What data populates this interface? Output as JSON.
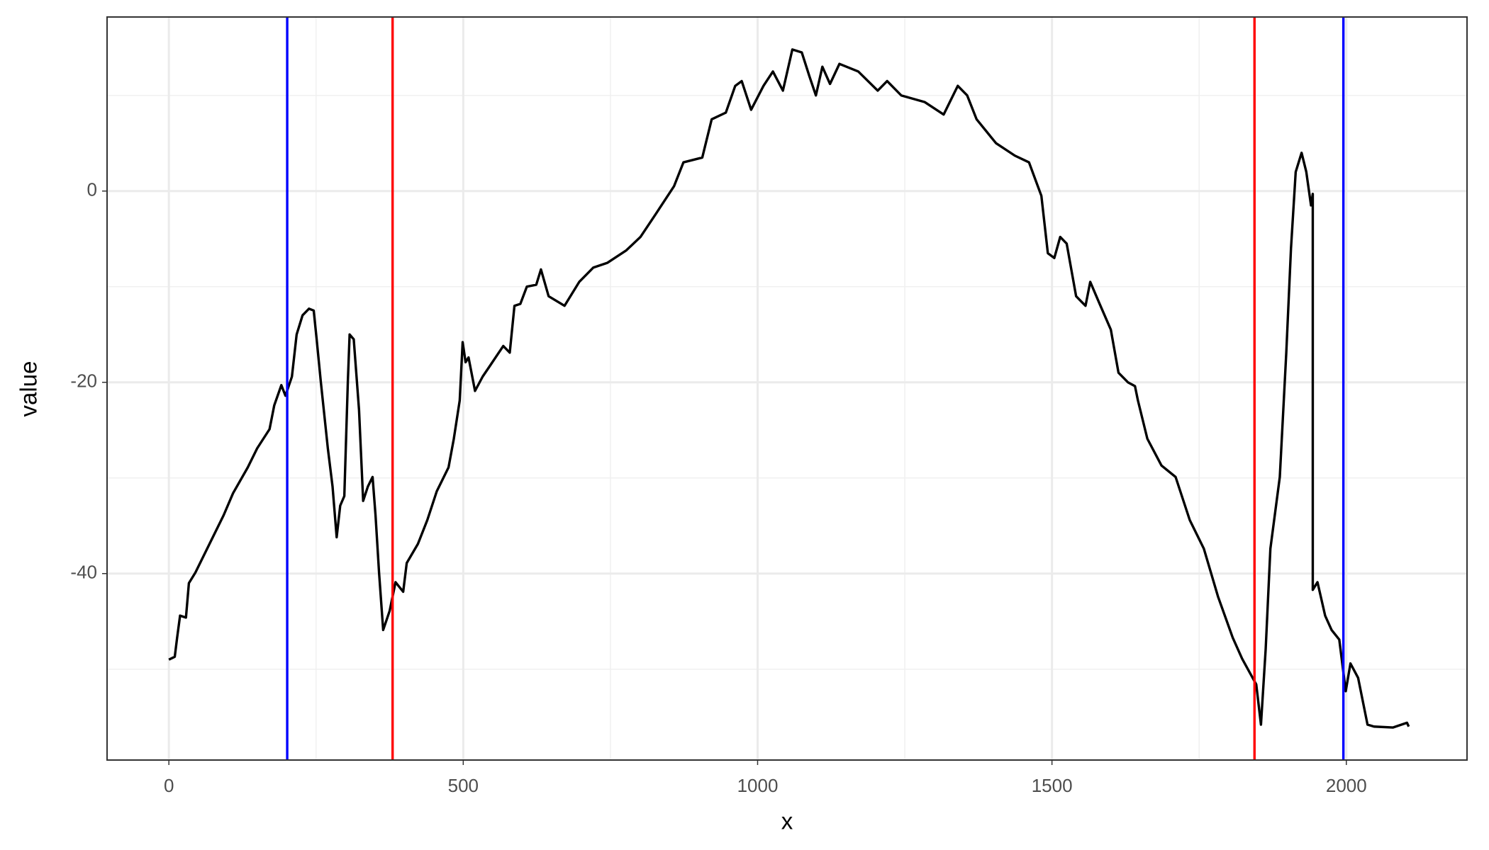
{
  "chart_data": {
    "type": "line",
    "x_label": "x",
    "y_label": "value",
    "series": [
      {
        "color": "#000000",
        "x": [
          0,
          10,
          14,
          19,
          29,
          34,
          45,
          53,
          69,
          93,
          109,
          134,
          150,
          171,
          179,
          191,
          198,
          209,
          217,
          227,
          238,
          246,
          251,
          258,
          270,
          278,
          285,
          291,
          298,
          304,
          307,
          314,
          323,
          330,
          338,
          346,
          351,
          357,
          364,
          375,
          385,
          398,
          404,
          423,
          439,
          455,
          475,
          484,
          494,
          499,
          504,
          509,
          520,
          533,
          544,
          568,
          579,
          587,
          597,
          608,
          624,
          632,
          645,
          672,
          697,
          721,
          745,
          777,
          801,
          826,
          858,
          874,
          906,
          922,
          946,
          962,
          973,
          989,
          1010,
          1026,
          1043,
          1059,
          1075,
          1088,
          1099,
          1110,
          1123,
          1139,
          1171,
          1204,
          1220,
          1244,
          1284,
          1316,
          1340,
          1356,
          1372,
          1405,
          1437,
          1461,
          1482,
          1493,
          1504,
          1514,
          1525,
          1541,
          1557,
          1565,
          1581,
          1600,
          1613,
          1629,
          1641,
          1646,
          1662,
          1686,
          1710,
          1734,
          1758,
          1782,
          1807,
          1823,
          1847,
          1855,
          1863,
          1871,
          1887,
          1898,
          1906,
          1914,
          1924,
          1932,
          1940,
          1943,
          1943,
          1951,
          1964,
          1975,
          1988,
          1999,
          2007,
          2020,
          2036,
          2047,
          2079,
          2103,
          2106
        ],
        "values": [
          -49,
          -48.7,
          -46.7,
          -44.4,
          -44.6,
          -41,
          -39.9,
          -38.9,
          -36.9,
          -33.9,
          -31.6,
          -28.9,
          -26.9,
          -24.9,
          -22.4,
          -20.3,
          -21.4,
          -19.4,
          -15,
          -13,
          -12.3,
          -12.5,
          -15.5,
          -19.9,
          -26.9,
          -30.9,
          -36.2,
          -32.9,
          -31.9,
          -19.9,
          -15,
          -15.5,
          -22.9,
          -32.4,
          -30.9,
          -29.9,
          -33.9,
          -39.9,
          -45.9,
          -43.9,
          -40.9,
          -41.9,
          -38.9,
          -36.9,
          -34.4,
          -31.4,
          -28.9,
          -25.9,
          -21.9,
          -15.8,
          -17.9,
          -17.4,
          -20.9,
          -19.4,
          -18.4,
          -16.2,
          -16.9,
          -12,
          -11.8,
          -10,
          -9.8,
          -8.2,
          -11,
          -12,
          -9.5,
          -8,
          -7.5,
          -6.2,
          -4.8,
          -2.5,
          0.5,
          3,
          3.5,
          7.5,
          8.2,
          11,
          11.5,
          8.5,
          11,
          12.5,
          10.5,
          14.8,
          14.5,
          12,
          10,
          13,
          11.2,
          13.3,
          12.5,
          10.5,
          11.5,
          10,
          9.3,
          8,
          11,
          10,
          7.5,
          5,
          3.7,
          3,
          -0.5,
          -6.5,
          -7,
          -4.8,
          -5.5,
          -11,
          -12,
          -9.5,
          -11.8,
          -14.5,
          -19,
          -20,
          -20.4,
          -21.9,
          -25.9,
          -28.7,
          -29.9,
          -34.4,
          -37.4,
          -42.4,
          -46.7,
          -48.9,
          -51.6,
          -55.8,
          -47.9,
          -37.4,
          -29.9,
          -16.9,
          -6,
          2,
          4,
          2,
          -1.5,
          -0.3,
          -41.7,
          -40.9,
          -44.4,
          -45.9,
          -46.9,
          -52.3,
          -49.4,
          -50.9,
          -55.8,
          -56,
          -56.1,
          -55.6,
          -56
        ]
      }
    ],
    "vlines": [
      {
        "x": 201,
        "color": "#0000ff"
      },
      {
        "x": 380,
        "color": "#ff0000"
      },
      {
        "x": 1844,
        "color": "#ff0000"
      },
      {
        "x": 1995,
        "color": "#0000ff"
      }
    ],
    "xlim": [
      -105,
      2205
    ],
    "ylim": [
      -59.5,
      18.2
    ],
    "xticks": [
      0,
      500,
      1000,
      1500,
      2000
    ],
    "yticks": [
      -40,
      -20,
      0
    ],
    "x_minor_grid": [
      250,
      750,
      1250,
      1750
    ],
    "y_minor_grid": [
      -50,
      -30,
      -10,
      10
    ],
    "grid": true
  }
}
